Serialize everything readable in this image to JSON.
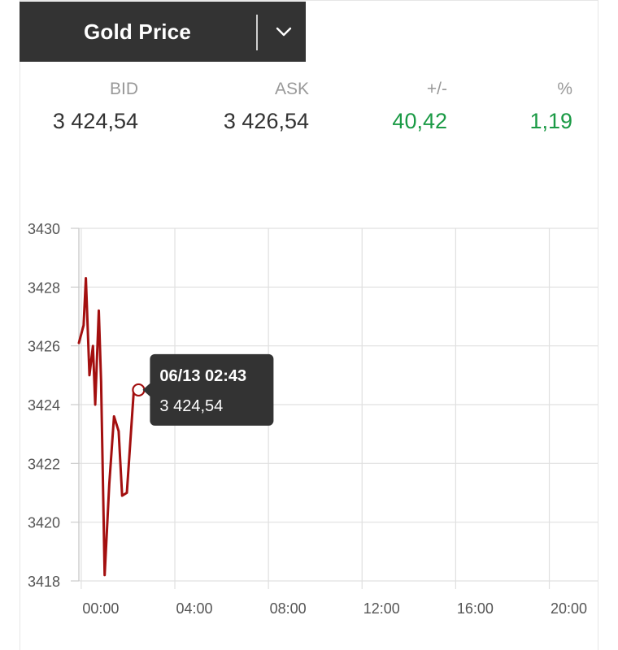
{
  "header": {
    "title": "Gold Price"
  },
  "quotes": [
    {
      "label": "BID",
      "value": "3 424,54",
      "positive": false
    },
    {
      "label": "ASK",
      "value": "3 426,54",
      "positive": false
    },
    {
      "label": "+/-",
      "value": "40,42",
      "positive": true
    },
    {
      "label": "%",
      "value": "1,19",
      "positive": true
    }
  ],
  "colors": {
    "line": "#a30f0f",
    "positive": "#1a9a45",
    "header_bg": "#333333",
    "tooltip_bg": "#333333"
  },
  "icons": {
    "dropdown": "chevron-down-icon"
  },
  "chart_data": {
    "type": "line",
    "x_unit": "hours",
    "x_ticks": [
      "00:00",
      "04:00",
      "08:00",
      "12:00",
      "16:00",
      "20:00"
    ],
    "x_tick_values": [
      0,
      4,
      8,
      12,
      16,
      20
    ],
    "xlim": [
      -0.1,
      22.9
    ],
    "ylim": [
      3418,
      3430
    ],
    "y_ticks": [
      3418,
      3420,
      3422,
      3424,
      3426,
      3428,
      3430
    ],
    "grid": true,
    "series": [
      {
        "x": [
          -0.1,
          0.1,
          0.2,
          0.35,
          0.5,
          0.6,
          0.75,
          0.85,
          1.0,
          1.2,
          1.4,
          1.6,
          1.75,
          1.95,
          2.25,
          2.45
        ],
        "y": [
          3426.1,
          3426.7,
          3428.3,
          3425.0,
          3426.0,
          3424.0,
          3427.2,
          3424.8,
          3418.2,
          3421.3,
          3423.6,
          3423.1,
          3420.9,
          3421.0,
          3424.5,
          3424.5
        ]
      }
    ],
    "tooltip": {
      "title": "06/13 02:43",
      "value": "3 424,54",
      "x": 2.45,
      "y": 3424.5
    }
  }
}
